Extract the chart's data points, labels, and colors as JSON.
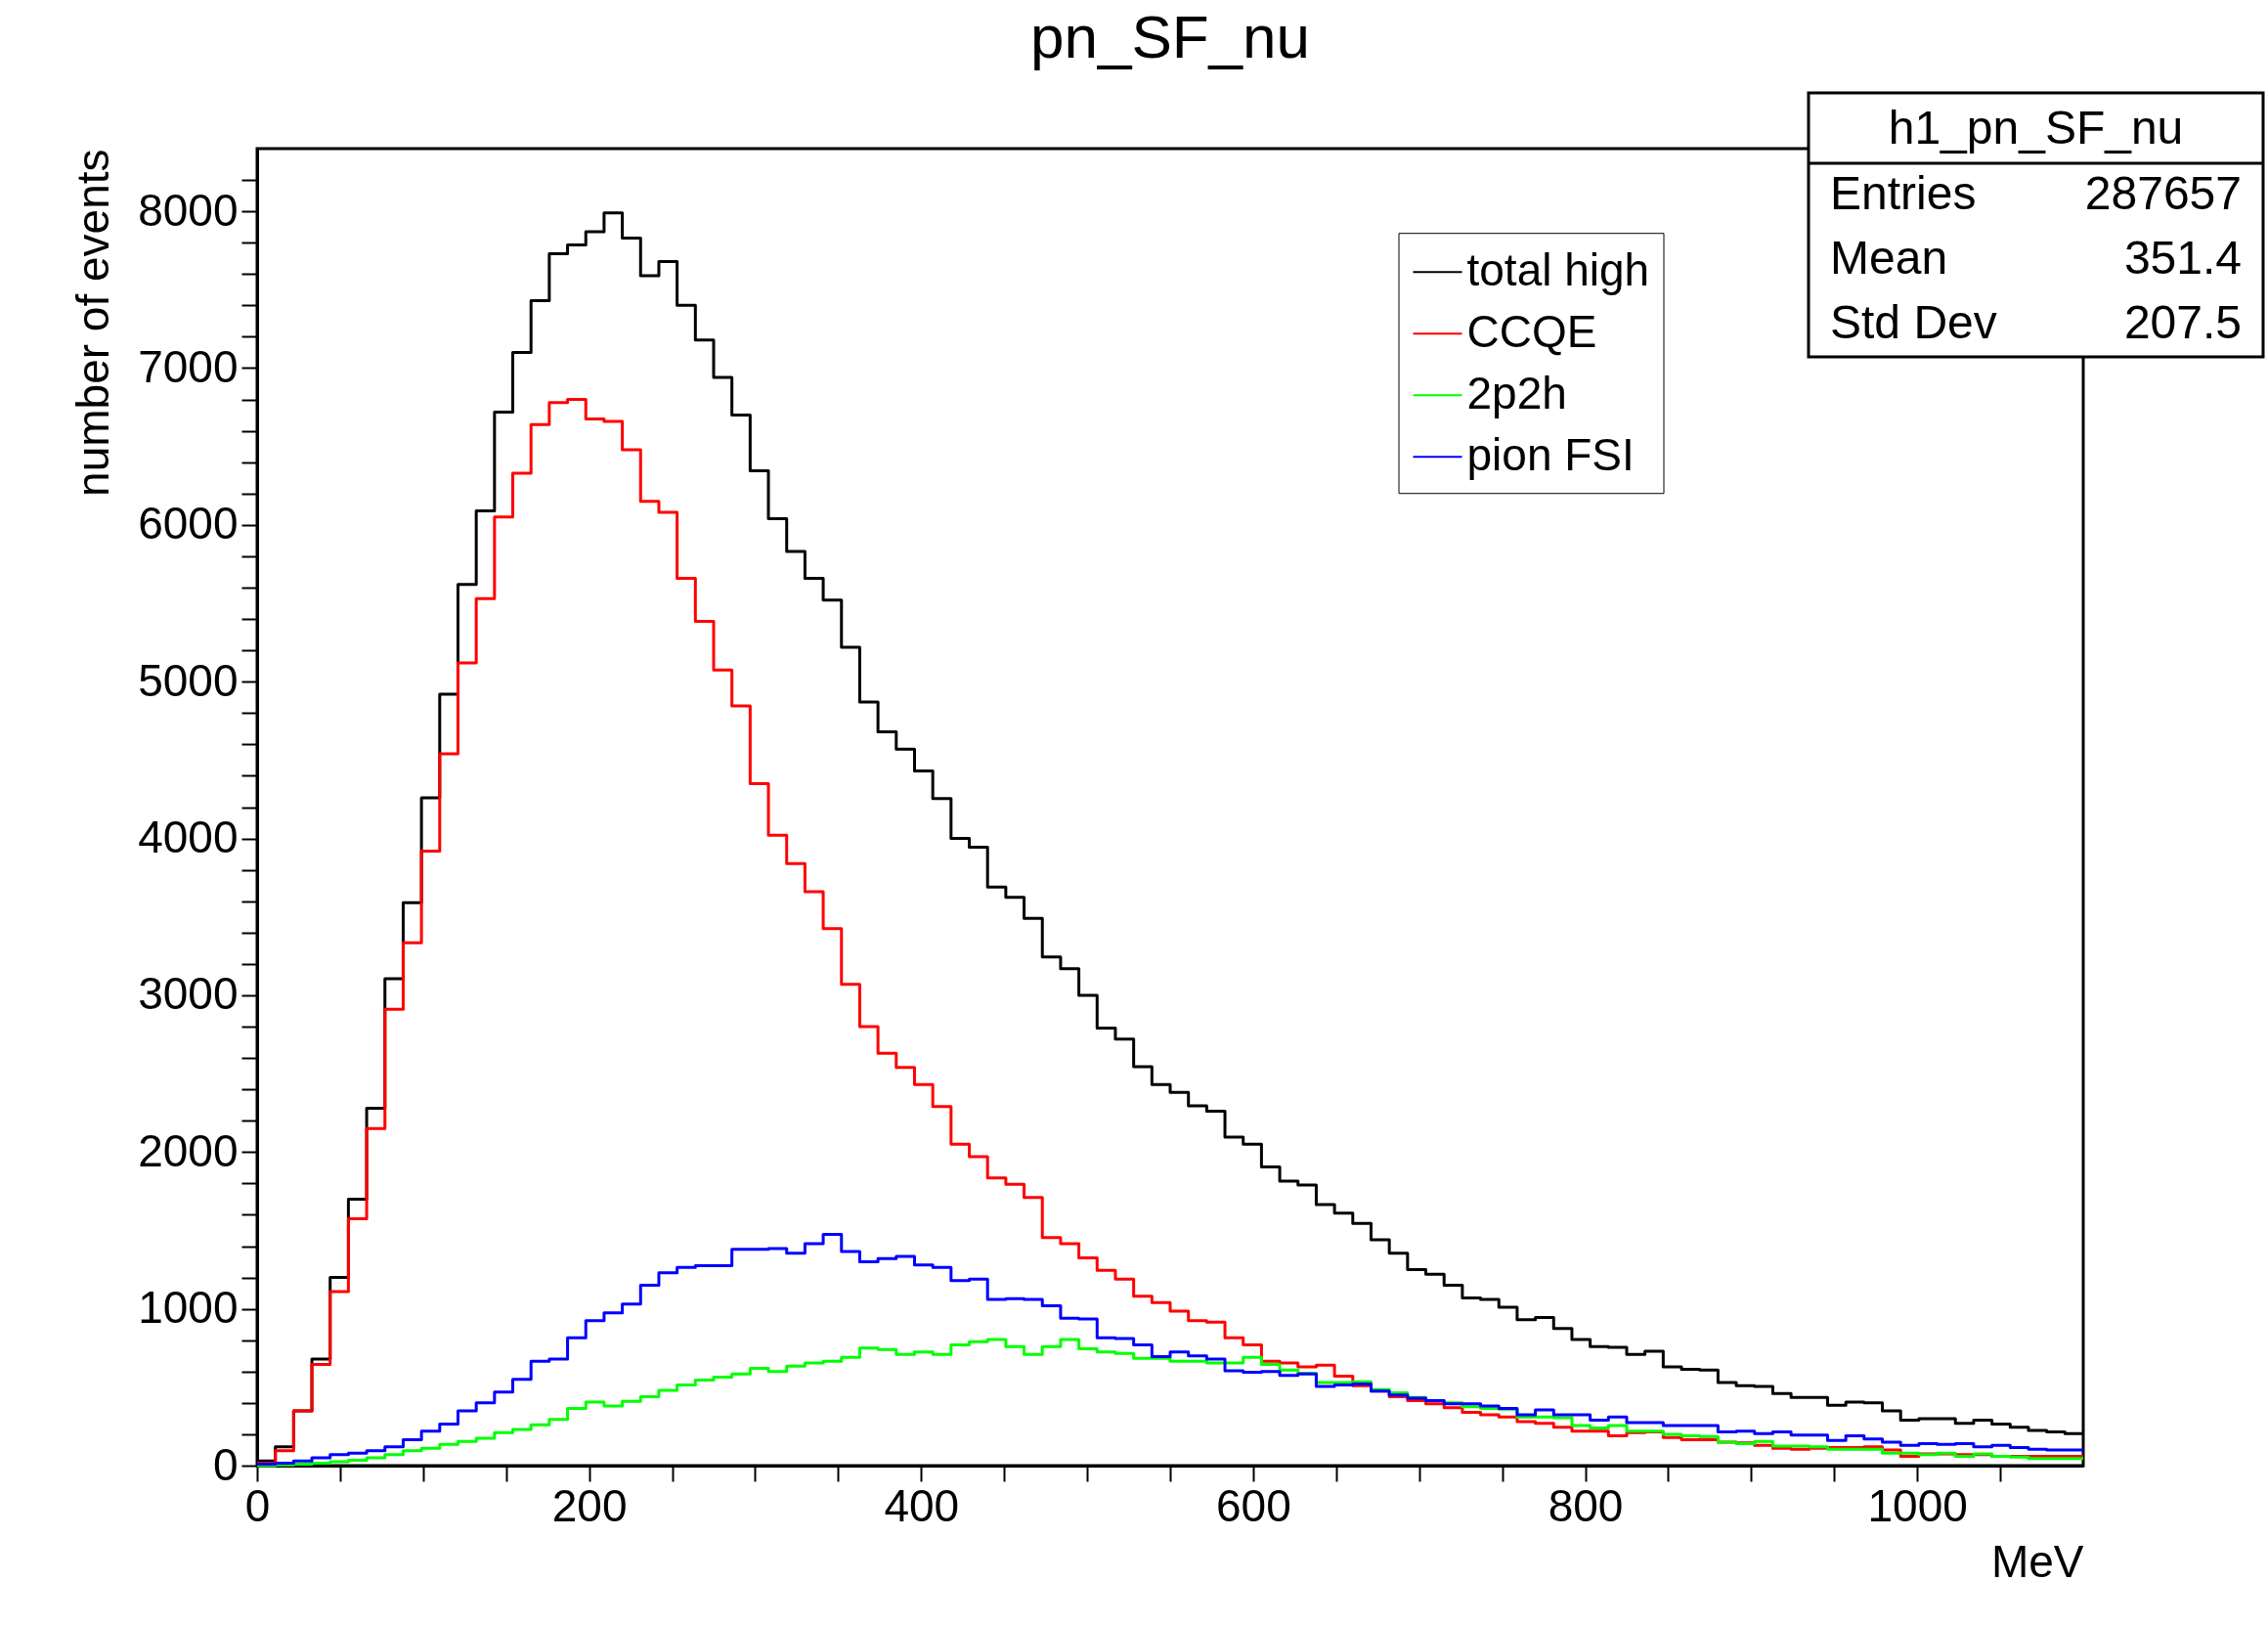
{
  "chart_data": {
    "type": "histogram",
    "title": "pn_SF_nu",
    "xlabel": "MeV",
    "ylabel": "number of events",
    "bins": [
      0,
      11,
      22,
      33,
      44,
      55,
      66,
      77,
      88,
      99,
      110,
      121,
      132,
      143,
      154,
      165,
      176,
      187,
      198,
      209,
      220,
      231,
      242,
      253,
      264,
      275,
      286,
      297,
      308,
      319,
      330,
      341,
      352,
      363,
      374,
      385,
      396,
      407,
      418,
      429,
      440,
      451,
      462,
      473,
      484,
      495,
      506,
      517,
      528,
      539,
      550,
      561,
      572,
      583,
      594,
      605,
      616,
      627,
      638,
      649,
      660,
      671,
      682,
      693,
      704,
      715,
      726,
      737,
      748,
      759,
      770,
      781,
      792,
      803,
      814,
      825,
      836,
      847,
      858,
      869,
      880,
      891,
      902,
      913,
      924,
      935,
      946,
      957,
      968,
      979,
      990,
      1001,
      1012,
      1023,
      1034,
      1045,
      1056,
      1067,
      1078,
      1089,
      1100
    ],
    "series": [
      {
        "name": "total high",
        "color": "#000000",
        "values": [
          30,
          120,
          350,
          680,
          1200,
          1700,
          2280,
          3105,
          3590,
          4260,
          4920,
          5620,
          6090,
          6720,
          7100,
          7430,
          7730,
          7785,
          7870,
          7990,
          7830,
          7590,
          7680,
          7400,
          7180,
          6940,
          6700,
          6345,
          6040,
          5830,
          5660,
          5520,
          5220,
          4870,
          4680,
          4570,
          4430,
          4255,
          4000,
          3945,
          3690,
          3625,
          3490,
          3245,
          3170,
          3000,
          2790,
          2720,
          2545,
          2430,
          2380,
          2295,
          2260,
          2095,
          2050,
          1905,
          1815,
          1790,
          1665,
          1610,
          1545,
          1440,
          1355,
          1250,
          1220,
          1150,
          1070,
          1060,
          1010,
          930,
          945,
          875,
          805,
          760,
          755,
          710,
          730,
          630,
          615,
          610,
          530,
          510,
          505,
          460,
          435,
          435,
          385,
          405,
          400,
          350,
          290,
          300,
          300,
          270,
          290,
          265,
          245,
          225,
          215,
          205
        ]
      },
      {
        "name": "CCQE",
        "color": "#ff0000",
        "values": [
          15,
          95,
          350,
          645,
          1110,
          1575,
          2150,
          2910,
          3335,
          3920,
          4540,
          5120,
          5530,
          6050,
          6330,
          6640,
          6780,
          6800,
          6675,
          6660,
          6480,
          6150,
          6080,
          5660,
          5385,
          5075,
          4845,
          4350,
          4020,
          3840,
          3660,
          3425,
          3070,
          2800,
          2630,
          2540,
          2430,
          2290,
          2050,
          1970,
          1835,
          1795,
          1710,
          1455,
          1415,
          1325,
          1245,
          1190,
          1080,
          1040,
          985,
          925,
          915,
          815,
          770,
          665,
          655,
          630,
          640,
          570,
          510,
          475,
          440,
          415,
          395,
          370,
          340,
          325,
          310,
          280,
          270,
          245,
          220,
          220,
          190,
          210,
          215,
          180,
          165,
          165,
          150,
          145,
          130,
          110,
          105,
          110,
          115,
          115,
          120,
          100,
          60,
          75,
          75,
          70,
          70,
          60,
          60,
          60,
          60,
          60
        ]
      },
      {
        "name": "2p2h",
        "color": "#00ff00",
        "values": [
          0,
          5,
          10,
          15,
          25,
          35,
          50,
          70,
          95,
          110,
          135,
          155,
          175,
          210,
          230,
          260,
          295,
          365,
          405,
          380,
          410,
          440,
          480,
          515,
          545,
          565,
          585,
          620,
          600,
          635,
          655,
          665,
          690,
          750,
          740,
          710,
          725,
          710,
          770,
          790,
          805,
          760,
          710,
          760,
          805,
          745,
          725,
          715,
          685,
          685,
          665,
          665,
          655,
          655,
          690,
          645,
          610,
          590,
          530,
          530,
          535,
          485,
          465,
          435,
          415,
          400,
          375,
          365,
          360,
          310,
          310,
          305,
          255,
          240,
          255,
          220,
          220,
          200,
          190,
          185,
          150,
          140,
          155,
          125,
          125,
          120,
          105,
          105,
          105,
          80,
          80,
          70,
          80,
          60,
          75,
          60,
          55,
          45,
          45,
          45
        ]
      },
      {
        "name": "pion FSI",
        "color": "#0000ff",
        "values": [
          10,
          15,
          30,
          50,
          70,
          80,
          95,
          120,
          165,
          220,
          265,
          350,
          400,
          470,
          550,
          665,
          680,
          815,
          925,
          975,
          1030,
          1150,
          1230,
          1265,
          1275,
          1275,
          1380,
          1380,
          1385,
          1355,
          1415,
          1475,
          1365,
          1300,
          1320,
          1335,
          1280,
          1265,
          1180,
          1190,
          1060,
          1065,
          1060,
          1020,
          940,
          935,
          815,
          810,
          770,
          695,
          725,
          700,
          680,
          605,
          595,
          600,
          575,
          585,
          505,
          515,
          520,
          475,
          450,
          430,
          415,
          395,
          395,
          380,
          365,
          325,
          355,
          325,
          325,
          290,
          310,
          275,
          275,
          255,
          255,
          255,
          215,
          220,
          205,
          215,
          195,
          195,
          160,
          190,
          170,
          150,
          130,
          140,
          135,
          140,
          120,
          130,
          115,
          105,
          100,
          100
        ]
      }
    ],
    "xlim": [
      0,
      1100
    ],
    "xticks": [
      0,
      {
        "value": 50,
        "label": null
      },
      {
        "value": 100,
        "label": null
      },
      {
        "value": 150,
        "label": null
      },
      200,
      {
        "value": 250,
        "label": null
      },
      {
        "value": 300,
        "label": null
      },
      {
        "value": 350,
        "label": null
      },
      400,
      {
        "value": 450,
        "label": null
      },
      {
        "value": 500,
        "label": null
      },
      {
        "value": 550,
        "label": null
      },
      600,
      {
        "value": 650,
        "label": null
      },
      {
        "value": 700,
        "label": null
      },
      {
        "value": 750,
        "label": null
      },
      800,
      {
        "value": 850,
        "label": null
      },
      {
        "value": 900,
        "label": null
      },
      {
        "value": 950,
        "label": null
      },
      1000,
      {
        "value": 1050,
        "label": null
      }
    ],
    "ylim": [
      0,
      8400
    ],
    "yticks": [
      0,
      {
        "value": 200,
        "label": null
      },
      {
        "value": 400,
        "label": null
      },
      {
        "value": 600,
        "label": null
      },
      {
        "value": 800,
        "label": null
      },
      1000,
      {
        "value": 1200,
        "label": null
      },
      {
        "value": 1400,
        "label": null
      },
      {
        "value": 1600,
        "label": null
      },
      {
        "value": 1800,
        "label": null
      },
      2000,
      {
        "value": 2200,
        "label": null
      },
      {
        "value": 2400,
        "label": null
      },
      {
        "value": 2600,
        "label": null
      },
      {
        "value": 2800,
        "label": null
      },
      3000,
      {
        "value": 3200,
        "label": null
      },
      {
        "value": 3400,
        "label": null
      },
      {
        "value": 3600,
        "label": null
      },
      {
        "value": 3800,
        "label": null
      },
      4000,
      {
        "value": 4200,
        "label": null
      },
      {
        "value": 4400,
        "label": null
      },
      {
        "value": 4600,
        "label": null
      },
      {
        "value": 4800,
        "label": null
      },
      5000,
      {
        "value": 5200,
        "label": null
      },
      {
        "value": 5400,
        "label": null
      },
      {
        "value": 5600,
        "label": null
      },
      {
        "value": 5800,
        "label": null
      },
      6000,
      {
        "value": 6200,
        "label": null
      },
      {
        "value": 6400,
        "label": null
      },
      {
        "value": 6600,
        "label": null
      },
      {
        "value": 6800,
        "label": null
      },
      7000,
      {
        "value": 7200,
        "label": null
      },
      {
        "value": 7400,
        "label": null
      },
      {
        "value": 7600,
        "label": null
      },
      {
        "value": 7800,
        "label": null
      },
      8000,
      {
        "value": 8200,
        "label": null
      }
    ],
    "legend": "top right",
    "annotations": [
      "h1_pn_SF_nu",
      "Entries",
      "287657",
      "Mean",
      "351.4",
      "Std Dev",
      "207.5"
    ]
  }
}
